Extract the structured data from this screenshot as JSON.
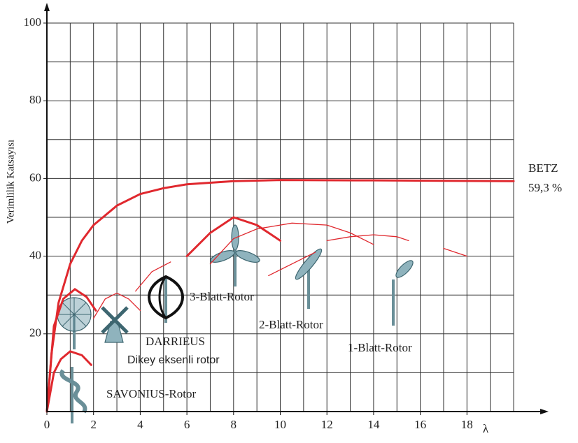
{
  "chart_data": {
    "type": "line",
    "y_label": "Verimlilik Katsayısı",
    "x_label": "λ",
    "xlim": [
      0,
      20
    ],
    "ylim": [
      0,
      100
    ],
    "xticks": [
      0,
      2,
      4,
      6,
      8,
      10,
      12,
      14,
      16,
      18
    ],
    "yticks": [
      20,
      40,
      60,
      80,
      100
    ],
    "xgrid": [
      1,
      2,
      3,
      4,
      5,
      6,
      7,
      8,
      9,
      10,
      11,
      12,
      13,
      14,
      15,
      16,
      17,
      18,
      19,
      20
    ],
    "ygrid": [
      10,
      20,
      30,
      40,
      50,
      60,
      70,
      80,
      90,
      100
    ],
    "grid": true,
    "series": [
      {
        "color": "#e0282e",
        "width": 3,
        "x": [
          0,
          0.2,
          0.5,
          1,
          1.5,
          2,
          3,
          4,
          5,
          6,
          8,
          10,
          14,
          20
        ],
        "values": [
          0,
          15,
          28,
          38,
          44,
          48,
          53,
          56,
          57.5,
          58.5,
          59.3,
          59.6,
          59.5,
          59.3
        ]
      },
      {
        "color": "#e0282e",
        "width": 3,
        "x": [
          0,
          0.3,
          0.6,
          1,
          1.5,
          1.9
        ],
        "values": [
          0,
          10,
          13.5,
          15.5,
          14.5,
          12
        ]
      },
      {
        "color": "#e0282e",
        "width": 3,
        "x": [
          0,
          0.3,
          0.7,
          1.2,
          1.7,
          2.1
        ],
        "values": [
          0,
          22,
          29,
          31.5,
          29.5,
          26
        ]
      },
      {
        "color": "#e0282e",
        "width": 1.3,
        "x": [
          2,
          2.5,
          3,
          3.5,
          4
        ],
        "values": [
          24,
          29,
          30.5,
          29,
          26
        ]
      },
      {
        "color": "#e0282e",
        "width": 1.3,
        "x": [
          3.8,
          4.5,
          5.3
        ],
        "values": [
          31,
          36,
          38.5
        ]
      },
      {
        "color": "#e0282e",
        "width": 3,
        "x": [
          6,
          7,
          8,
          9,
          10
        ],
        "values": [
          40,
          46,
          50,
          48,
          44
        ]
      },
      {
        "color": "#e0282e",
        "width": 1.3,
        "x": [
          7,
          8,
          9,
          10.5,
          12,
          13,
          14
        ],
        "values": [
          38,
          44.5,
          47,
          48.5,
          48,
          46,
          43
        ]
      },
      {
        "color": "#e0282e",
        "width": 1.3,
        "x": [
          12,
          13,
          14,
          15,
          15.5
        ],
        "values": [
          44,
          45,
          45.5,
          45,
          44
        ]
      },
      {
        "color": "#e0282e",
        "width": 1.3,
        "x": [
          17,
          18
        ],
        "values": [
          42,
          40
        ]
      },
      {
        "color": "#e0282e",
        "width": 1.3,
        "x": [
          9.5,
          11.5
        ],
        "values": [
          35,
          41
        ]
      }
    ],
    "annotations": [
      "BETZ",
      "59,3 %",
      "3-Blatt-Rotor",
      "2-Blatt-Rotor",
      "1-Blatt-Rotor",
      "DARRIEUS",
      "Dikey eksenli rotor",
      "SAVONIUS-Rotor"
    ]
  }
}
